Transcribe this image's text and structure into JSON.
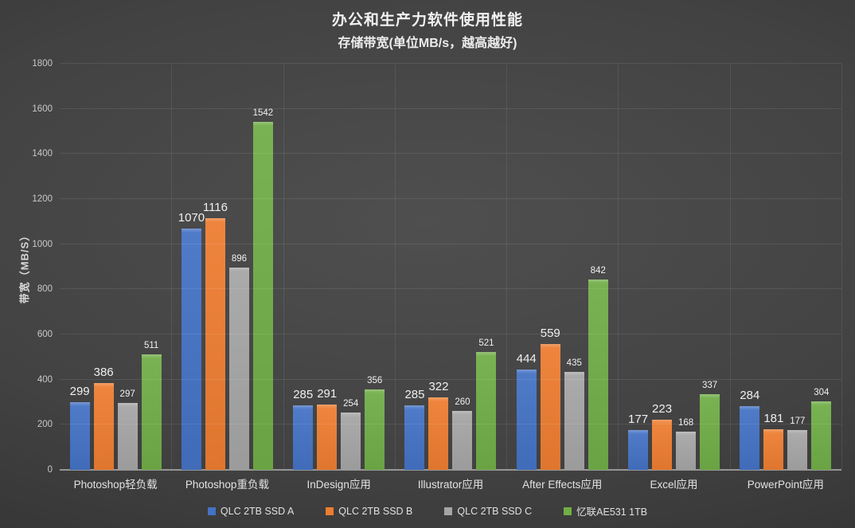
{
  "header": {
    "title": "办公和生产力软件使用性能",
    "subtitle": "存储带宽(单位MB/s，越高越好)"
  },
  "chart_data": {
    "type": "bar",
    "title": "办公和生产力软件使用性能",
    "subtitle": "存储带宽(单位MB/s，越高越好)",
    "ylabel": "带宽（MB/S）",
    "xlabel": "",
    "ylim": [
      0,
      1800
    ],
    "yticks": [
      0,
      200,
      400,
      600,
      800,
      1000,
      1200,
      1400,
      1600,
      1800
    ],
    "grid": "horizontal gridlines on, vertical category separators on",
    "legend_position": "bottom-center",
    "data_labels": true,
    "background": "dark gray radial gradient",
    "categories": [
      "Photoshop轻负载",
      "Photoshop重负载",
      "InDesign应用",
      "Illustrator应用",
      "After Effects应用",
      "Excel应用",
      "PowerPoint应用"
    ],
    "series": [
      {
        "name": "QLC 2TB SSD A",
        "color": "#4472C4",
        "values": [
          299,
          1070,
          285,
          285,
          444,
          177,
          284
        ]
      },
      {
        "name": "QLC 2TB SSD B",
        "color": "#ED7D31",
        "values": [
          386,
          1116,
          291,
          322,
          559,
          223,
          181
        ]
      },
      {
        "name": "QLC 2TB SSD C",
        "color": "#A5A5A5",
        "values": [
          297,
          896,
          254,
          260,
          435,
          168,
          177
        ]
      },
      {
        "name": "忆联AE531 1TB",
        "color": "#70AD47",
        "values": [
          511,
          1542,
          356,
          521,
          842,
          337,
          304
        ]
      }
    ]
  }
}
